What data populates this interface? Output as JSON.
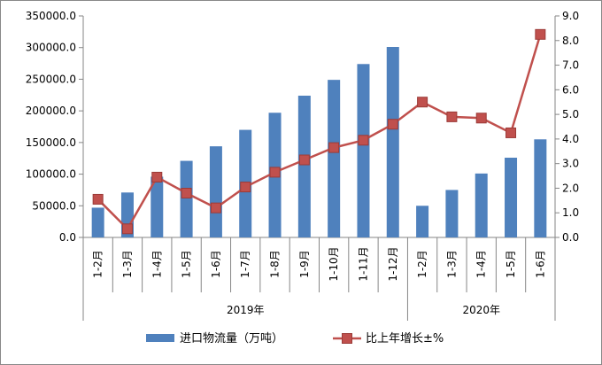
{
  "chart_data": {
    "type": "bar",
    "categories": [
      "1-2月",
      "1-3月",
      "1-4月",
      "1-5月",
      "1-6月",
      "1-7月",
      "1-8月",
      "1-9月",
      "1-10月",
      "1-11月",
      "1-12月",
      "1-2月",
      "1-3月",
      "1-4月",
      "1-5月",
      "1-6月"
    ],
    "groups": [
      {
        "label": "2019年",
        "count": 11
      },
      {
        "label": "2020年",
        "count": 5
      }
    ],
    "series": [
      {
        "name": "进口物流量（万吨）",
        "type": "bar",
        "axis": "left",
        "color": "#4F81BD",
        "values": [
          47000,
          71000,
          96000,
          121000,
          144000,
          170000,
          197000,
          224000,
          249000,
          274000,
          301000,
          50000,
          75000,
          101000,
          126000,
          155000
        ]
      },
      {
        "name": "比上年增长±%",
        "type": "line",
        "axis": "right",
        "color": "#C0504D",
        "values": [
          1.55,
          0.35,
          2.45,
          1.8,
          1.2,
          2.05,
          2.65,
          3.15,
          3.65,
          3.95,
          4.6,
          5.5,
          4.9,
          4.85,
          4.25,
          8.25
        ]
      }
    ],
    "y_left": {
      "min": 0,
      "max": 350000,
      "step": 50000,
      "tick_labels": [
        "0.0",
        "50000.0",
        "100000.0",
        "150000.0",
        "200000.0",
        "250000.0",
        "300000.0",
        "350000.0"
      ]
    },
    "y_right": {
      "min": 0,
      "max": 9,
      "step": 1,
      "tick_labels": [
        "0.0",
        "1.0",
        "2.0",
        "3.0",
        "4.0",
        "5.0",
        "6.0",
        "7.0",
        "8.0",
        "9.0"
      ]
    },
    "grid": false,
    "legend": "bottom"
  }
}
